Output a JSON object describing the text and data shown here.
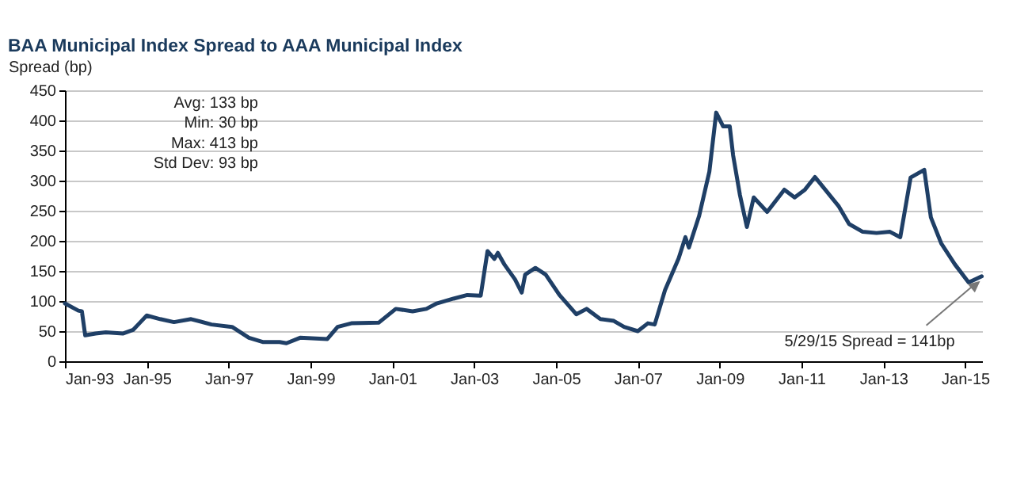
{
  "chart_data": {
    "type": "line",
    "title": "BAA Municipal Index Spread to AAA Municipal Index",
    "ylabel": "Spread (bp)",
    "x": [
      "1993-01",
      "1993-05",
      "1993-06",
      "1993-07",
      "1993-10",
      "1994-01",
      "1994-06",
      "1994-09",
      "1994-11",
      "1995-01",
      "1995-05",
      "1995-09",
      "1996-02",
      "1996-08",
      "1997-02",
      "1997-07",
      "1997-11",
      "1998-04",
      "1998-06",
      "1998-10",
      "1999-06",
      "1999-09",
      "2000-01",
      "2000-09",
      "2001-02",
      "2001-07",
      "2001-11",
      "2002-02",
      "2002-07",
      "2002-11",
      "2003-03",
      "2003-05",
      "2003-07",
      "2003-08",
      "2003-10",
      "2004-01",
      "2004-03",
      "2004-04",
      "2004-07",
      "2004-10",
      "2005-02",
      "2005-07",
      "2005-10",
      "2006-02",
      "2006-06",
      "2006-09",
      "2007-01",
      "2007-04",
      "2007-06",
      "2007-09",
      "2008-01",
      "2008-03",
      "2008-04",
      "2008-07",
      "2008-10",
      "2008-12",
      "2009-02",
      "2009-04",
      "2009-05",
      "2009-07",
      "2009-09",
      "2009-11",
      "2010-03",
      "2010-08",
      "2010-11",
      "2011-02",
      "2011-05",
      "2011-08",
      "2011-12",
      "2012-03",
      "2012-07",
      "2012-11",
      "2013-03",
      "2013-06",
      "2013-09",
      "2014-01",
      "2014-03",
      "2014-06",
      "2014-10",
      "2015-02",
      "2015-05-29"
    ],
    "series": [
      {
        "color": "#1f3f66",
        "values": [
          96,
          84,
          83,
          43,
          46,
          48,
          46,
          52,
          64,
          76,
          70,
          65,
          70,
          61,
          57,
          39,
          32,
          32,
          30,
          39,
          37,
          57,
          63,
          64,
          87,
          83,
          87,
          96,
          104,
          110,
          109,
          183,
          170,
          180,
          160,
          136,
          114,
          144,
          155,
          144,
          110,
          78,
          87,
          70,
          67,
          57,
          50,
          63,
          61,
          118,
          171,
          206,
          189,
          241,
          315,
          413,
          390,
          390,
          342,
          276,
          223,
          272,
          248,
          285,
          272,
          285,
          306,
          285,
          257,
          228,
          215,
          213,
          215,
          206,
          305,
          318,
          239,
          196,
          161,
          131,
          141
        ]
      }
    ],
    "xlim": [
      "1993-01",
      "2015-06"
    ],
    "xticks": [
      {
        "value": "1993-01",
        "label": "Jan-93"
      },
      {
        "value": "1995-01",
        "label": "Jan-95"
      },
      {
        "value": "1997-01",
        "label": "Jan-97"
      },
      {
        "value": "1999-01",
        "label": "Jan-99"
      },
      {
        "value": "2001-01",
        "label": "Jan-01"
      },
      {
        "value": "2003-01",
        "label": "Jan-03"
      },
      {
        "value": "2005-01",
        "label": "Jan-05"
      },
      {
        "value": "2007-01",
        "label": "Jan-07"
      },
      {
        "value": "2009-01",
        "label": "Jan-09"
      },
      {
        "value": "2011-01",
        "label": "Jan-11"
      },
      {
        "value": "2013-01",
        "label": "Jan-13"
      },
      {
        "value": "2015-01",
        "label": "Jan-15"
      }
    ],
    "ylim": [
      0,
      450
    ],
    "yticks": [
      0,
      50,
      100,
      150,
      200,
      250,
      300,
      350,
      400,
      450
    ],
    "grid": "y",
    "marker": "none",
    "line_style": "solid",
    "annotations": [
      "Avg: 133 bp",
      "Min: 30 bp",
      "Max: 413 bp",
      "Std Dev: 93 bp",
      {
        "text": "5/29/15 Spread = 141bp",
        "x": "2015-05-29",
        "y": 141
      }
    ]
  }
}
